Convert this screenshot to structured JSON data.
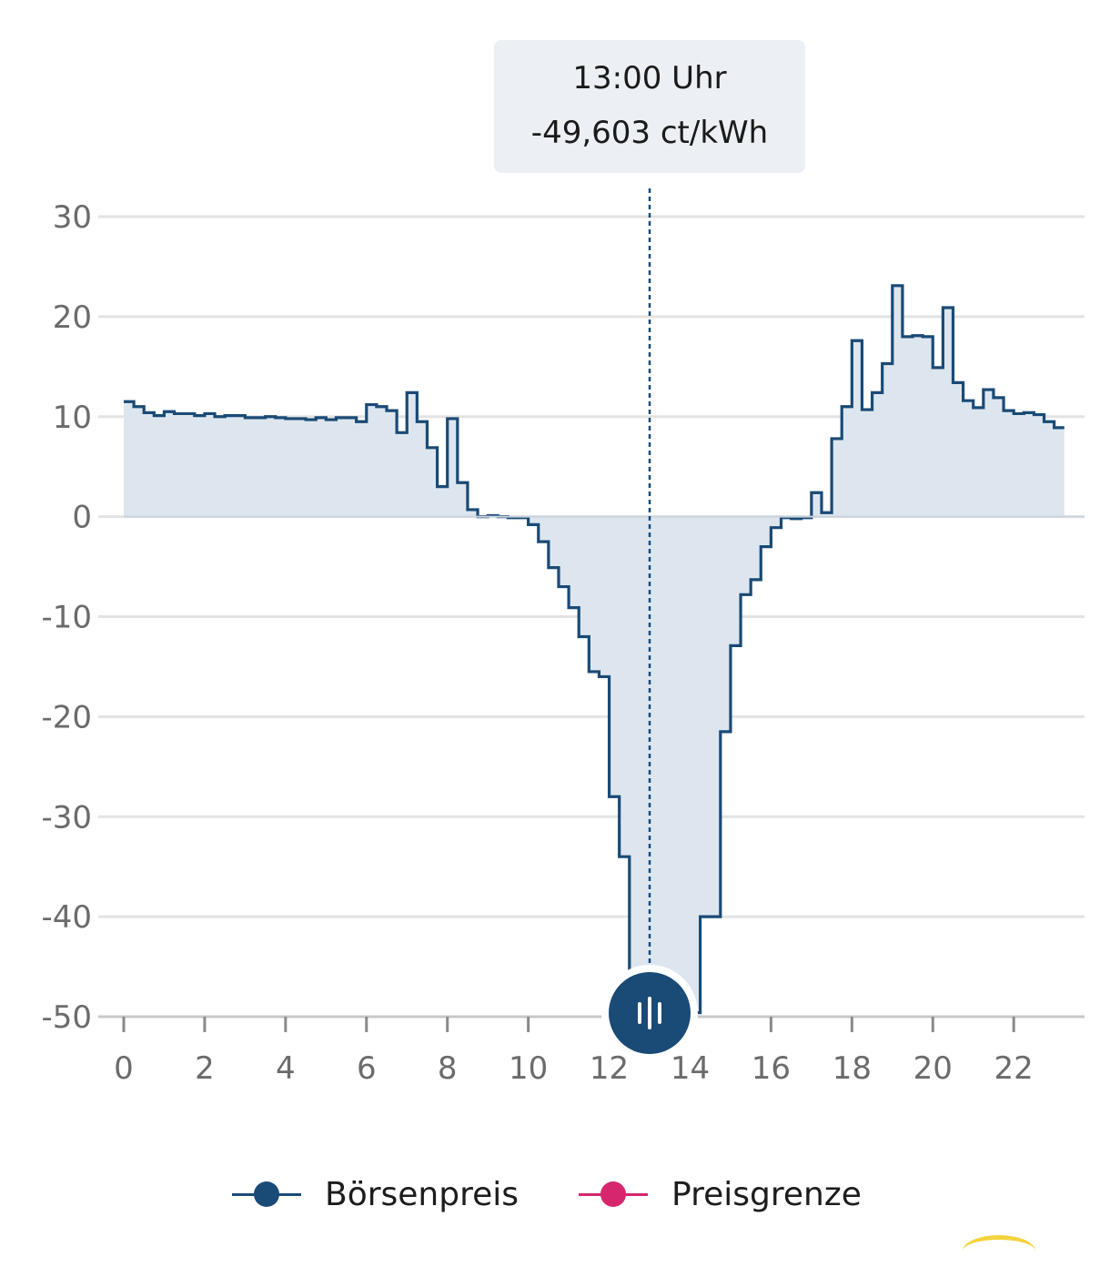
{
  "tooltip": {
    "time": "13:00 Uhr",
    "value": "-49,603 ct/kWh"
  },
  "colors": {
    "series_line": "#1a4a76",
    "series_fill": "#dde6ef",
    "grid": "#e3e3e3",
    "axis": "#c8c8c8",
    "tick_text": "#6b6b6b",
    "preisgrenze": "#d6266e",
    "scrubber": "#1a4a76"
  },
  "legend": {
    "items": [
      {
        "label": "Börsenpreis",
        "color": "#1a4a76"
      },
      {
        "label": "Preisgrenze",
        "color": "#d6266e"
      }
    ]
  },
  "scrubber": {
    "icon": "drag-handle-icon",
    "position_hour": 13
  },
  "chart_data": {
    "type": "area",
    "step": true,
    "grid": true,
    "xlim": [
      0,
      23.75
    ],
    "ylim": [
      -50,
      30
    ],
    "x_ticks": [
      0,
      2,
      4,
      6,
      8,
      10,
      12,
      14,
      16,
      18,
      20,
      22
    ],
    "x_tick_labels": [
      "0",
      "2",
      "4",
      "6",
      "8",
      "10",
      "12",
      "14",
      "16",
      "18",
      "20",
      "22"
    ],
    "y_ticks": [
      30,
      20,
      10,
      0,
      -10,
      -20,
      -30,
      -40,
      -50
    ],
    "y_tick_labels": [
      "30",
      "20",
      "10",
      "0",
      "-10",
      "-20",
      "-30",
      "-40",
      "-50"
    ],
    "selected": {
      "x": 13,
      "y": -49.603
    },
    "series": [
      {
        "name": "Börsenpreis",
        "interval_hours": 0.25,
        "values": [
          11.5,
          11.0,
          10.4,
          10.1,
          10.5,
          10.3,
          10.3,
          10.1,
          10.3,
          10.0,
          10.1,
          10.1,
          9.9,
          9.9,
          10.0,
          9.9,
          9.8,
          9.8,
          9.7,
          9.9,
          9.7,
          9.9,
          9.9,
          9.5,
          11.2,
          11.0,
          10.6,
          8.4,
          12.4,
          9.5,
          6.9,
          3.0,
          9.8,
          3.4,
          0.7,
          0.0,
          0.1,
          0.0,
          -0.1,
          -0.1,
          -0.8,
          -2.5,
          -5.1,
          -7.0,
          -9.1,
          -12.0,
          -15.5,
          -16.0,
          -28.0,
          -34.0,
          -49.603,
          -49.603,
          -49.603,
          -49.603,
          -49.603,
          -49.603,
          -49.603,
          -40.0,
          -40.0,
          -21.5,
          -12.9,
          -7.8,
          -6.3,
          -3.0,
          -1.1,
          -0.1,
          -0.2,
          -0.1,
          2.4,
          0.4,
          7.8,
          11.0,
          17.6,
          10.7,
          12.4,
          15.3,
          23.1,
          18.0,
          18.1,
          18.0,
          14.9,
          20.9,
          13.4,
          11.6,
          10.9,
          12.7,
          11.9,
          10.6,
          10.3,
          10.4,
          10.2,
          9.5,
          8.9
        ]
      }
    ]
  }
}
